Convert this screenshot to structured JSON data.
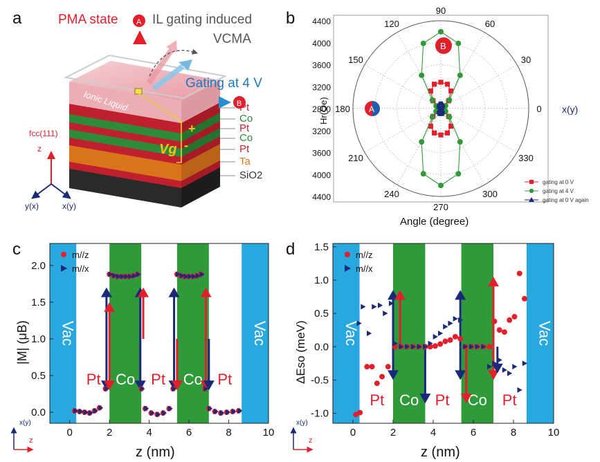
{
  "panel_labels": [
    "a",
    "b",
    "c",
    "d"
  ],
  "panel_a": {
    "pma_state": "PMA state",
    "marker_a": "A",
    "marker_b": "B",
    "il_gating_1": "IL gating induced",
    "il_gating_2": "VCMA",
    "gating_4v": "Gating at 4 V",
    "ionic_liquid": "Ionic Liquid",
    "vg": "Vg",
    "plus": "+",
    "minus": "-",
    "layers": [
      {
        "label": "Pt",
        "color": "#d0212f"
      },
      {
        "label": "Co",
        "color": "#2e8b3a"
      },
      {
        "label": "Pt",
        "color": "#d0212f"
      },
      {
        "label": "Co",
        "color": "#2e8b3a"
      },
      {
        "label": "Pt",
        "color": "#d0212f"
      },
      {
        "label": "Ta",
        "color": "#e07b1f"
      },
      {
        "label": "SiO2",
        "color": "#333333"
      }
    ],
    "fcc": "fcc(111)",
    "axis_z": "z",
    "axis_yx": "y(x)",
    "axis_xy": "x(y)"
  },
  "panel_b": {
    "radial_ticks": [
      "4400",
      "4000",
      "3600",
      "3200",
      "2800"
    ],
    "radial_tick_values": [
      4400,
      4000,
      3600,
      3200,
      2800
    ],
    "angle_labels": [
      "0",
      "30",
      "60",
      "90",
      "120",
      "150",
      "180",
      "210",
      "240",
      "270",
      "300",
      "330"
    ],
    "ylabel": "Hr(Oe)",
    "xlabel": "Angle (degree)",
    "direction_label": "x(y)",
    "legend": [
      "gating at 0 V",
      "gating at 4 V",
      "gating at 0  V again"
    ]
  },
  "panel_c": {
    "region_labels": [
      "Vac",
      "Pt",
      "Co",
      "Pt",
      "Co",
      "Pt",
      "Vac"
    ],
    "legend": [
      "m//z",
      "m//x"
    ],
    "xticks": [
      "0",
      "2",
      "4",
      "6",
      "8",
      "10"
    ],
    "yticks": [
      "0.0",
      "0.5",
      "1.0",
      "1.5",
      "2.0"
    ],
    "xlabel": "z (nm)",
    "ylabel": "|M| (μB)",
    "axis_xy": "x(y)",
    "axis_z": "z"
  },
  "panel_d": {
    "region_labels": [
      "Vac",
      "Pt",
      "Co",
      "Pt",
      "Co",
      "Pt",
      "Vac"
    ],
    "legend": [
      "m//z",
      "m//x"
    ],
    "xticks": [
      "0",
      "2",
      "4",
      "6",
      "8",
      "10"
    ],
    "yticks": [
      "-1.0",
      "-0.5",
      "0.0",
      "0.5",
      "1.0",
      "1.5"
    ],
    "xlabel": "z (nm)",
    "ylabel": "ΔEso (meV)",
    "axis_xy": "x(y)",
    "axis_z": "z"
  },
  "chart_data": [
    {
      "type": "scatter",
      "polar": true,
      "rlim": [
        4400,
        2800
      ],
      "series": [
        {
          "name": "gating at 0 V",
          "color": "#e2202c",
          "marker": "square",
          "theta": [
            0,
            15,
            30,
            45,
            60,
            75,
            90,
            105,
            120,
            135,
            150,
            165,
            180,
            195,
            210,
            225,
            240,
            255,
            270,
            285,
            300,
            315,
            330,
            345
          ],
          "r": [
            2800,
            2830,
            2860,
            3000,
            3170,
            3260,
            3280,
            3260,
            3170,
            3000,
            2860,
            2830,
            2800,
            2830,
            2860,
            3000,
            3170,
            3260,
            3280,
            3260,
            3170,
            3000,
            2860,
            2830
          ]
        },
        {
          "name": "gating at 4 V",
          "color": "#2f9a3a",
          "marker": "circle",
          "theta": [
            0,
            15,
            30,
            45,
            60,
            75,
            90,
            105,
            120,
            135,
            150,
            165,
            180,
            195,
            210,
            225,
            240,
            255,
            270,
            285,
            300,
            315,
            330,
            345
          ],
          "r": [
            2800,
            2830,
            2900,
            3020,
            3500,
            4030,
            4200,
            4030,
            3500,
            3020,
            2900,
            2830,
            2800,
            2830,
            2900,
            3020,
            3500,
            4030,
            4200,
            4030,
            3500,
            3020,
            2900,
            2830
          ]
        },
        {
          "name": "gating at 0  V again",
          "color": "#1b2a78",
          "marker": "triangle",
          "theta": [
            0,
            10,
            20,
            30,
            45,
            60,
            75,
            90,
            105,
            120,
            135,
            150,
            160,
            170,
            180,
            190,
            200,
            210,
            225,
            240,
            255,
            270,
            285,
            300,
            315,
            330,
            340,
            350
          ],
          "r": [
            2800,
            2800,
            2810,
            2820,
            2850,
            2880,
            2900,
            2900,
            2900,
            2880,
            2850,
            2820,
            2810,
            2800,
            2800,
            2800,
            2810,
            2820,
            2850,
            2880,
            2900,
            2900,
            2900,
            2880,
            2850,
            2820,
            2810,
            2800
          ]
        }
      ],
      "xlabel": "Angle (degree)",
      "ylabel": "Hr(Oe)"
    },
    {
      "type": "scatter",
      "xlim": [
        -1,
        10
      ],
      "ylim": [
        -0.15,
        2.3
      ],
      "regions": [
        {
          "label": "Vac",
          "x0": -1,
          "x1": 0.33,
          "color": "#29a8e0"
        },
        {
          "label": "Co",
          "x0": 2.0,
          "x1": 3.6,
          "color": "#2f9a3a"
        },
        {
          "label": "Co",
          "x0": 5.4,
          "x1": 7.0,
          "color": "#2f9a3a"
        },
        {
          "label": "Vac",
          "x0": 8.65,
          "x1": 10,
          "color": "#29a8e0"
        }
      ],
      "series": [
        {
          "name": "m//z",
          "color": "#e2202c",
          "marker": "circle",
          "x": [
            0.25,
            0.5,
            0.75,
            1.0,
            1.25,
            1.5,
            1.8,
            2.0,
            2.2,
            2.4,
            2.6,
            2.8,
            3.0,
            3.2,
            3.4,
            3.6,
            3.8,
            4.1,
            4.4,
            4.7,
            5.0,
            5.2,
            5.4,
            5.6,
            5.8,
            6.0,
            6.2,
            6.4,
            6.6,
            6.8,
            7.0,
            7.3,
            7.6,
            7.9,
            8.2,
            8.5
          ],
          "y": [
            0.02,
            0.01,
            0.0,
            -0.01,
            0.02,
            0.06,
            0.32,
            1.88,
            1.86,
            1.85,
            1.85,
            1.85,
            1.85,
            1.86,
            1.88,
            0.32,
            0.05,
            -0.01,
            -0.03,
            -0.01,
            0.05,
            0.32,
            1.88,
            1.86,
            1.85,
            1.85,
            1.85,
            1.86,
            1.88,
            0.32,
            0.05,
            0.01,
            -0.01,
            0.0,
            0.01,
            0.02
          ]
        },
        {
          "name": "m//x",
          "color": "#1b2a78",
          "marker": "triangle-right",
          "x": [
            0.3,
            0.55,
            0.8,
            1.05,
            1.3,
            1.55,
            1.85,
            2.05,
            2.25,
            2.45,
            2.65,
            2.85,
            3.05,
            3.25,
            3.45,
            3.65,
            3.85,
            4.15,
            4.45,
            4.75,
            5.05,
            5.25,
            5.45,
            5.65,
            5.85,
            6.05,
            6.25,
            6.45,
            6.65,
            6.85,
            7.05,
            7.35,
            7.65,
            7.95,
            8.25,
            8.55
          ],
          "y": [
            0.02,
            0.01,
            0.0,
            -0.01,
            0.02,
            0.06,
            0.32,
            1.88,
            1.86,
            1.85,
            1.85,
            1.85,
            1.85,
            1.86,
            1.88,
            0.32,
            0.05,
            -0.01,
            -0.03,
            -0.01,
            0.05,
            0.32,
            1.88,
            1.86,
            1.85,
            1.85,
            1.85,
            1.86,
            1.88,
            0.32,
            0.05,
            0.01,
            -0.01,
            0.0,
            0.01,
            0.02
          ]
        }
      ],
      "xlabel": "z (nm)",
      "ylabel": "|M| (μB)"
    },
    {
      "type": "scatter",
      "xlim": [
        -1,
        10
      ],
      "ylim": [
        -1.15,
        1.55
      ],
      "regions": [
        {
          "label": "Vac",
          "x0": -1,
          "x1": 0.33,
          "color": "#29a8e0"
        },
        {
          "label": "Co",
          "x0": 2.0,
          "x1": 3.6,
          "color": "#2f9a3a"
        },
        {
          "label": "Co",
          "x0": 5.4,
          "x1": 7.0,
          "color": "#2f9a3a"
        },
        {
          "label": "Vac",
          "x0": 8.65,
          "x1": 10,
          "color": "#29a8e0"
        }
      ],
      "series": [
        {
          "name": "m//z",
          "color": "#e2202c",
          "marker": "circle",
          "x": [
            0.15,
            0.35,
            0.7,
            0.95,
            1.2,
            1.45,
            1.75,
            2.1,
            2.4,
            2.7,
            3.0,
            3.3,
            3.6,
            3.85,
            4.1,
            4.35,
            4.6,
            4.85,
            5.1,
            5.35,
            5.6,
            5.9,
            6.2,
            6.5,
            6.8,
            7.05,
            7.3,
            7.55,
            7.8,
            8.05,
            8.3,
            8.55
          ],
          "y": [
            -1.02,
            -0.99,
            -0.3,
            -0.3,
            -0.55,
            -0.45,
            -0.3,
            0.0,
            0.0,
            0.0,
            0.0,
            0.0,
            0.0,
            0.0,
            0.01,
            0.04,
            0.08,
            0.1,
            0.15,
            0.12,
            0.0,
            0.0,
            0.0,
            0.0,
            0.0,
            0.38,
            0.25,
            0.22,
            0.4,
            0.45,
            1.1,
            0.72
          ]
        },
        {
          "name": "m//x",
          "color": "#1b2a78",
          "marker": "triangle-right",
          "x": [
            0.3,
            0.5,
            0.8,
            1.05,
            1.35,
            1.6,
            1.9,
            2.1,
            2.4,
            2.7,
            3.0,
            3.3,
            3.6,
            3.85,
            4.1,
            4.35,
            4.6,
            4.85,
            5.1,
            5.35,
            5.6,
            5.9,
            6.2,
            6.5,
            6.8,
            7.05,
            7.3,
            7.55,
            7.8,
            8.05,
            8.3,
            8.55
          ],
          "y": [
            0.35,
            0.6,
            0.2,
            0.6,
            0.62,
            0.5,
            0.65,
            0.05,
            0.0,
            0.0,
            0.0,
            0.0,
            0.0,
            0.05,
            0.15,
            0.2,
            0.3,
            0.35,
            0.42,
            0.4,
            0.0,
            0.0,
            0.0,
            0.0,
            -0.3,
            -0.25,
            -0.2,
            -0.35,
            -0.4,
            -0.3,
            -0.65,
            -0.25
          ]
        }
      ],
      "xlabel": "z (nm)",
      "ylabel": "ΔEso (meV)"
    }
  ]
}
